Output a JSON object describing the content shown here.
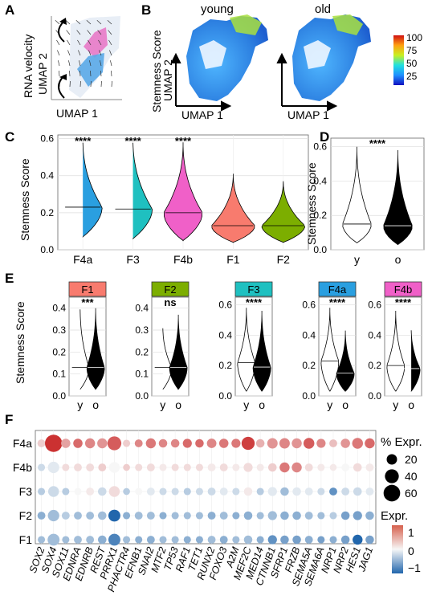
{
  "panels": {
    "A": "A",
    "B": "B",
    "C": "C",
    "D": "D",
    "E": "E",
    "F": "F"
  },
  "panel_a": {
    "y_label": "RNA velocity",
    "umap_y": "UMAP 2",
    "umap_x": "UMAP 1"
  },
  "panel_b": {
    "y_label": "Stemness Score",
    "umap_y": "UMAP 2",
    "umap_x": "UMAP 1",
    "titles": [
      "young",
      "old"
    ],
    "colorbar_ticks": [
      "100",
      "75",
      "50",
      "25"
    ]
  },
  "chart_data": [
    {
      "panel": "C",
      "type": "violin",
      "ylabel": "Stemness Score",
      "ylim": [
        0,
        0.62
      ],
      "yticks": [
        "0.0",
        "0.2",
        "0.4",
        "0.6"
      ],
      "categories": [
        "F4a",
        "F3",
        "F4b",
        "F1",
        "F2"
      ],
      "colors": [
        "#2a9fe0",
        "#1fc0c0",
        "#f060c8",
        "#f87b6e",
        "#7cae00"
      ],
      "medians": [
        0.23,
        0.22,
        0.2,
        0.13,
        0.13
      ],
      "mins": [
        0.07,
        0.06,
        0.05,
        0.04,
        0.04
      ],
      "maxs": [
        0.6,
        0.6,
        0.58,
        0.41,
        0.37
      ],
      "significance": [
        "****",
        "****",
        "****",
        "",
        ""
      ]
    },
    {
      "panel": "D",
      "type": "violin",
      "ylabel": "Stemness Score",
      "ylim": [
        0,
        0.65
      ],
      "yticks": [
        "0.0",
        "0.2",
        "0.4",
        "0.6"
      ],
      "categories": [
        "y",
        "o"
      ],
      "medians": [
        0.15,
        0.14
      ],
      "mins": [
        0.04,
        0.03
      ],
      "maxs": [
        0.6,
        0.58
      ],
      "significance": "****"
    },
    {
      "panel": "E",
      "type": "violin",
      "ylabel": "Stemness Score",
      "facets": [
        {
          "name": "F1",
          "color": "#f87b6e",
          "ylim": [
            0,
            0.45
          ],
          "yticks": [
            "0.0",
            "0.1",
            "0.2",
            "0.3",
            "0.4"
          ],
          "categories": [
            "y",
            "o"
          ],
          "medians": [
            0.13,
            0.13
          ],
          "maxs": [
            0.41,
            0.4
          ],
          "significance": "***"
        },
        {
          "name": "F2",
          "color": "#7cae00",
          "ylim": [
            0,
            0.45
          ],
          "yticks": [
            "0.0",
            "0.1",
            "0.2",
            "0.3",
            "0.4"
          ],
          "categories": [
            "y",
            "o"
          ],
          "medians": [
            0.13,
            0.13
          ],
          "maxs": [
            0.32,
            0.37
          ],
          "significance": "ns"
        },
        {
          "name": "F3",
          "color": "#1fc0c0",
          "ylim": [
            0,
            0.65
          ],
          "yticks": [
            "0.0",
            "0.2",
            "0.4",
            "0.6"
          ],
          "categories": [
            "y",
            "o"
          ],
          "medians": [
            0.22,
            0.19
          ],
          "maxs": [
            0.58,
            0.56
          ],
          "significance": "****"
        },
        {
          "name": "F4a",
          "color": "#2a9fe0",
          "ylim": [
            0,
            0.65
          ],
          "yticks": [
            "0.0",
            "0.2",
            "0.4",
            "0.6"
          ],
          "categories": [
            "y",
            "o"
          ],
          "medians": [
            0.23,
            0.15
          ],
          "maxs": [
            0.58,
            0.43
          ],
          "significance": "****"
        },
        {
          "name": "F4b",
          "color": "#f060c8",
          "ylim": [
            0,
            0.65
          ],
          "yticks": [
            "0.0",
            "0.2",
            "0.4",
            "0.6"
          ],
          "categories": [
            "y",
            "o"
          ],
          "medians": [
            0.2,
            0.18
          ],
          "maxs": [
            0.56,
            0.45
          ],
          "significance": "****"
        }
      ]
    },
    {
      "panel": "F",
      "type": "dotplot",
      "rows": [
        "F4a",
        "F4b",
        "F3",
        "F2",
        "F1"
      ],
      "genes": [
        "SOX2",
        "SOX4",
        "SOX11",
        "EDNRA",
        "EDNRB",
        "REST",
        "PRRX1",
        "PHACTR4",
        "EFNB1",
        "SNAI2",
        "MTF2",
        "TP53",
        "RAF1",
        "TET1",
        "RUNX2",
        "FOXO3",
        "A2M",
        "MEF2C",
        "MED14",
        "CTNNB1",
        "SFRP1",
        "FRZB",
        "SEMA5A",
        "SEMA6A",
        "NRP1",
        "NRP2",
        "HES1",
        "JAG1"
      ],
      "expr": [
        [
          0.3,
          1.4,
          0.6,
          1.0,
          0.8,
          0.7,
          1.1,
          0.3,
          0.8,
          0.9,
          0.8,
          0.8,
          1.0,
          1.0,
          0.8,
          0.9,
          0.9,
          1.3,
          0.5,
          0.7,
          0.8,
          0.7,
          1.1,
          0.8,
          0.4,
          0.7,
          0.9,
          1.0
        ],
        [
          -0.2,
          -0.1,
          0.2,
          0.2,
          0.2,
          0.3,
          0.0,
          0.3,
          0.2,
          0.2,
          0.1,
          0.2,
          0.2,
          0.2,
          0.1,
          0.2,
          0.1,
          0.2,
          0.1,
          0.3,
          0.9,
          0.8,
          0.2,
          0.1,
          0.1,
          0.0,
          0.2,
          0.1
        ],
        [
          -0.3,
          -0.2,
          -0.3,
          0.0,
          0.1,
          -0.2,
          0.2,
          -0.3,
          0.0,
          -0.1,
          -0.2,
          -0.2,
          -0.3,
          -0.2,
          -0.2,
          -0.1,
          -0.2,
          0.1,
          -0.3,
          -0.1,
          -0.4,
          -0.1,
          -0.1,
          -0.2,
          -0.7,
          -0.2,
          -0.2,
          -0.1
        ],
        [
          -0.5,
          -0.4,
          -0.3,
          -0.4,
          -0.4,
          -0.4,
          -1.0,
          -0.5,
          -0.4,
          -0.4,
          -0.5,
          -0.4,
          -0.4,
          -0.4,
          -0.5,
          -0.4,
          -0.5,
          -0.5,
          -0.4,
          -0.4,
          -0.5,
          -0.5,
          -0.4,
          -0.4,
          -0.3,
          -0.6,
          -0.6,
          -0.5
        ],
        [
          -0.4,
          -0.4,
          -0.4,
          -0.4,
          -0.4,
          -0.5,
          -0.8,
          -0.4,
          -0.5,
          -0.5,
          -0.4,
          -0.4,
          -0.5,
          -0.5,
          -0.4,
          -0.5,
          -0.4,
          -0.4,
          -0.5,
          -0.7,
          -0.6,
          -0.6,
          -0.5,
          -0.6,
          -0.5,
          -0.6,
          -1.0,
          -0.6
        ]
      ],
      "pct": [
        [
          10,
          65,
          15,
          15,
          18,
          18,
          40,
          8,
          10,
          18,
          12,
          12,
          14,
          12,
          16,
          15,
          14,
          35,
          12,
          20,
          20,
          18,
          22,
          14,
          10,
          15,
          22,
          18
        ],
        [
          8,
          25,
          8,
          10,
          10,
          10,
          22,
          7,
          8,
          10,
          8,
          8,
          8,
          8,
          10,
          10,
          8,
          14,
          8,
          12,
          18,
          18,
          10,
          8,
          7,
          10,
          12,
          10
        ],
        [
          8,
          22,
          8,
          8,
          10,
          12,
          22,
          7,
          8,
          10,
          8,
          8,
          8,
          8,
          10,
          10,
          8,
          12,
          8,
          14,
          12,
          12,
          10,
          8,
          10,
          10,
          12,
          10
        ],
        [
          10,
          25,
          10,
          10,
          10,
          12,
          28,
          8,
          10,
          10,
          8,
          8,
          8,
          8,
          10,
          10,
          8,
          12,
          8,
          14,
          12,
          12,
          10,
          8,
          8,
          12,
          14,
          12
        ],
        [
          8,
          28,
          8,
          10,
          10,
          12,
          28,
          8,
          8,
          10,
          8,
          8,
          8,
          8,
          10,
          10,
          8,
          12,
          8,
          14,
          12,
          12,
          10,
          8,
          8,
          12,
          18,
          12
        ]
      ],
      "size_legend": {
        "title": "% Expr.",
        "values": [
          20,
          40,
          60
        ]
      },
      "color_legend": {
        "title": "Expr.",
        "ticks": [
          "1",
          "0",
          "−1"
        ]
      }
    }
  ]
}
